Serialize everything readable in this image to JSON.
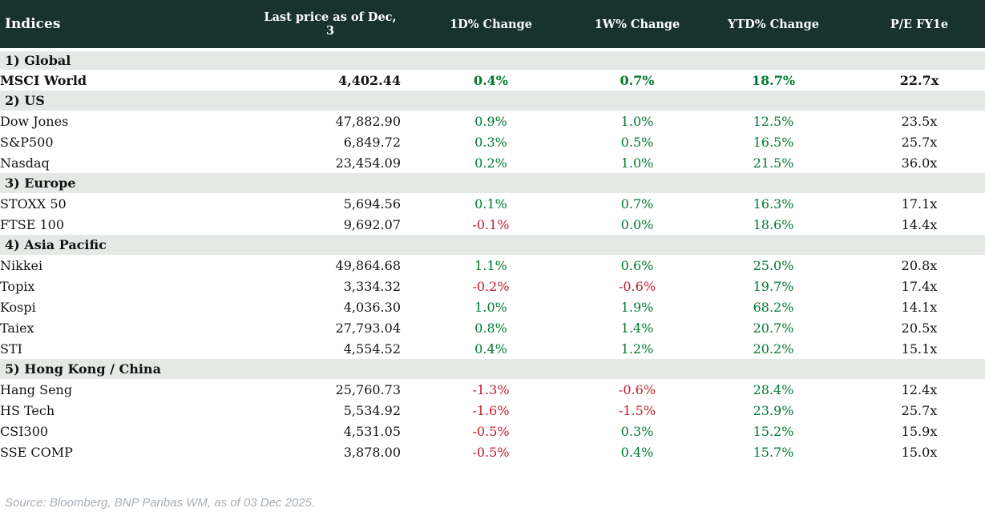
{
  "chart_data": {
    "type": "table",
    "title": "Indices",
    "columns": [
      "Indices",
      "Last price as of Dec, 3",
      "1D% Change",
      "1W% Change",
      "YTD% Change",
      "P/E FY1e"
    ],
    "sections": [
      {
        "label": "1) Global",
        "rows": [
          {
            "name": "MSCI World",
            "last_price": "4,402.44",
            "change_1d": "0.4%",
            "change_1w": "0.7%",
            "change_ytd": "18.7%",
            "pe_fy1e": "22.7x",
            "emphasis": true
          }
        ]
      },
      {
        "label": "2) US",
        "rows": [
          {
            "name": "Dow Jones",
            "last_price": "47,882.90",
            "change_1d": "0.9%",
            "change_1w": "1.0%",
            "change_ytd": "12.5%",
            "pe_fy1e": "23.5x",
            "emphasis": false
          },
          {
            "name": "S&P500",
            "last_price": "6,849.72",
            "change_1d": "0.3%",
            "change_1w": "0.5%",
            "change_ytd": "16.5%",
            "pe_fy1e": "25.7x",
            "emphasis": false
          },
          {
            "name": "Nasdaq",
            "last_price": "23,454.09",
            "change_1d": "0.2%",
            "change_1w": "1.0%",
            "change_ytd": "21.5%",
            "pe_fy1e": "36.0x",
            "emphasis": false
          }
        ]
      },
      {
        "label": "3) Europe",
        "rows": [
          {
            "name": "STOXX 50",
            "last_price": "5,694.56",
            "change_1d": "0.1%",
            "change_1w": "0.7%",
            "change_ytd": "16.3%",
            "pe_fy1e": "17.1x",
            "emphasis": false
          },
          {
            "name": "FTSE 100",
            "last_price": "9,692.07",
            "change_1d": "-0.1%",
            "change_1w": "0.0%",
            "change_ytd": "18.6%",
            "pe_fy1e": "14.4x",
            "emphasis": false
          }
        ]
      },
      {
        "label": "4) Asia Pacific",
        "rows": [
          {
            "name": "Nikkei",
            "last_price": "49,864.68",
            "change_1d": "1.1%",
            "change_1w": "0.6%",
            "change_ytd": "25.0%",
            "pe_fy1e": "20.8x",
            "emphasis": false
          },
          {
            "name": "Topix",
            "last_price": "3,334.32",
            "change_1d": "-0.2%",
            "change_1w": "-0.6%",
            "change_ytd": "19.7%",
            "pe_fy1e": "17.4x",
            "emphasis": false
          },
          {
            "name": "Kospi",
            "last_price": "4,036.30",
            "change_1d": "1.0%",
            "change_1w": "1.9%",
            "change_ytd": "68.2%",
            "pe_fy1e": "14.1x",
            "emphasis": false
          },
          {
            "name": "Taiex",
            "last_price": "27,793.04",
            "change_1d": "0.8%",
            "change_1w": "1.4%",
            "change_ytd": "20.7%",
            "pe_fy1e": "20.5x",
            "emphasis": false
          },
          {
            "name": "STI",
            "last_price": "4,554.52",
            "change_1d": "0.4%",
            "change_1w": "1.2%",
            "change_ytd": "20.2%",
            "pe_fy1e": "15.1x",
            "emphasis": false
          }
        ]
      },
      {
        "label": "5) Hong Kong / China",
        "rows": [
          {
            "name": "Hang Seng",
            "last_price": "25,760.73",
            "change_1d": "-1.3%",
            "change_1w": "-0.6%",
            "change_ytd": "28.4%",
            "pe_fy1e": "12.4x",
            "emphasis": false
          },
          {
            "name": "HS Tech",
            "last_price": "5,534.92",
            "change_1d": "-1.6%",
            "change_1w": "-1.5%",
            "change_ytd": "23.9%",
            "pe_fy1e": "25.7x",
            "emphasis": false
          },
          {
            "name": "CSI300",
            "last_price": "4,531.05",
            "change_1d": "-0.5%",
            "change_1w": "0.3%",
            "change_ytd": "15.2%",
            "pe_fy1e": "15.9x",
            "emphasis": false
          },
          {
            "name": "SSE COMP",
            "last_price": "3,878.00",
            "change_1d": "-0.5%",
            "change_1w": "0.4%",
            "change_ytd": "15.7%",
            "pe_fy1e": "15.0x",
            "emphasis": false
          }
        ]
      }
    ],
    "source": "Source: Bloomberg, BNP Paribas WM, as of 03 Dec 2025."
  },
  "colors": {
    "header_bg": "#18332d",
    "section_bg": "#e4e9e5",
    "positive": "#007a33",
    "negative": "#c11b2e",
    "header_text": "#ffffff",
    "body_text": "#131313",
    "source_text": "#a8afb6"
  }
}
